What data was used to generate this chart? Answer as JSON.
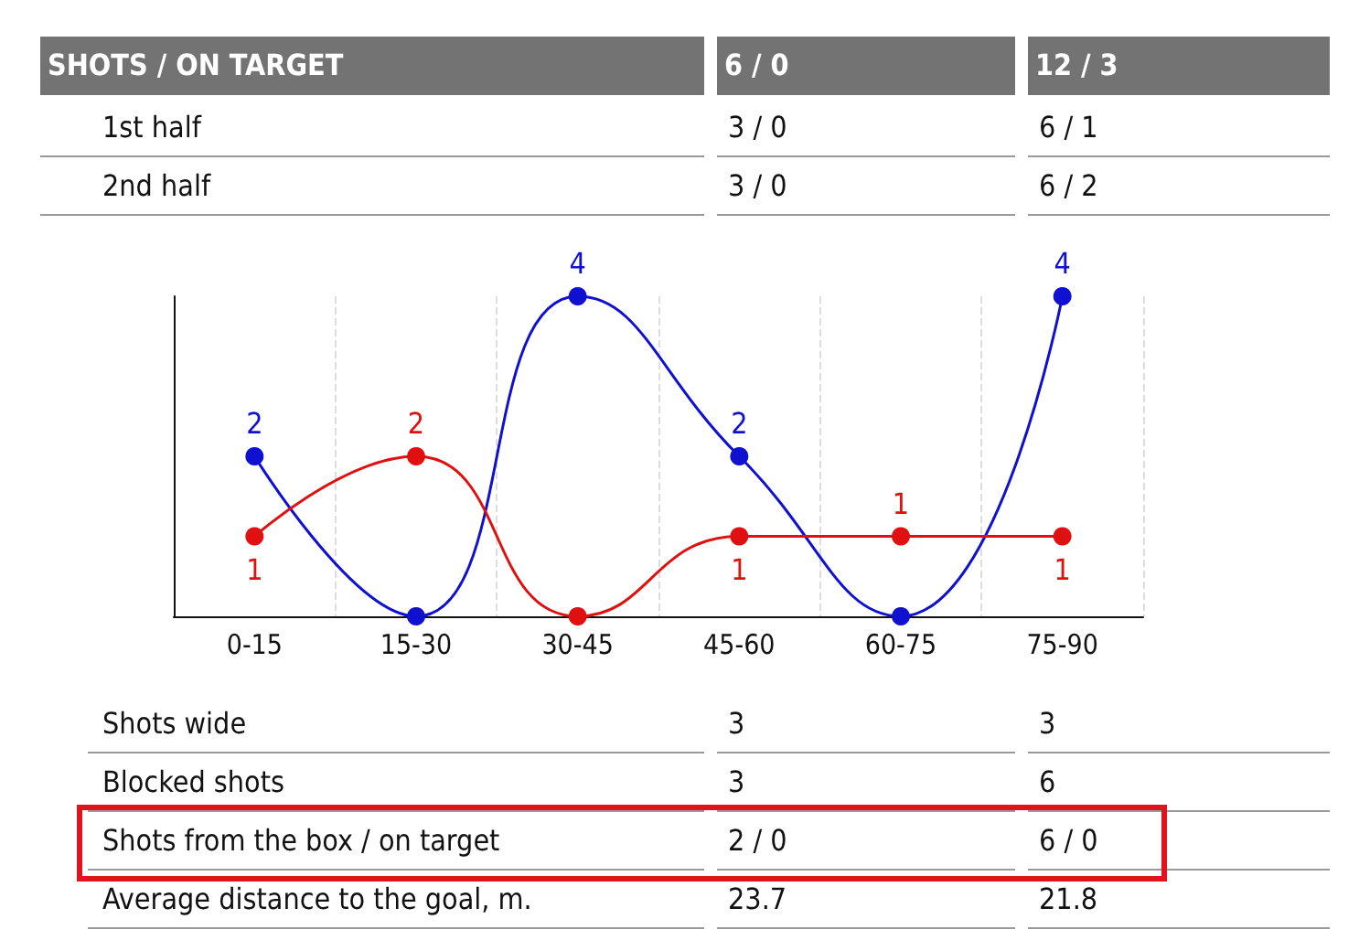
{
  "chart_data": [
    {
      "type": "other",
      "annotations": [
        "SHOTS / ON TARGET",
        "6 / 0",
        "12 / 3",
        "1st half",
        "3 / 0",
        "6 / 1",
        "2nd half",
        "3 / 0",
        "6 / 2"
      ]
    },
    {
      "type": "line",
      "categories": [
        "0-15",
        "15-30",
        "30-45",
        "45-60",
        "60-75",
        "75-90"
      ],
      "ylim": [
        0,
        4
      ],
      "tick_labels": "x",
      "grid": "x",
      "marker": "circle",
      "line_style": "solid",
      "series": [
        {
          "color": "#1010d0",
          "values": [
            2,
            0,
            4,
            2,
            0,
            4
          ],
          "value_labels": [
            "2",
            null,
            "4",
            "2",
            null,
            "4"
          ]
        },
        {
          "color": "#e01010",
          "values": [
            1,
            2,
            0,
            1,
            1,
            1
          ],
          "value_labels": [
            "1",
            "2",
            null,
            "1",
            "1",
            "1"
          ]
        }
      ]
    },
    {
      "type": "other",
      "annotations": [
        "Shots wide",
        "3",
        "3",
        "Blocked shots",
        "3",
        "6",
        "Shots from the box / on target",
        "2 / 0",
        "6 / 0",
        "Average distance to the goal, m.",
        "23.7",
        "21.8"
      ]
    }
  ]
}
